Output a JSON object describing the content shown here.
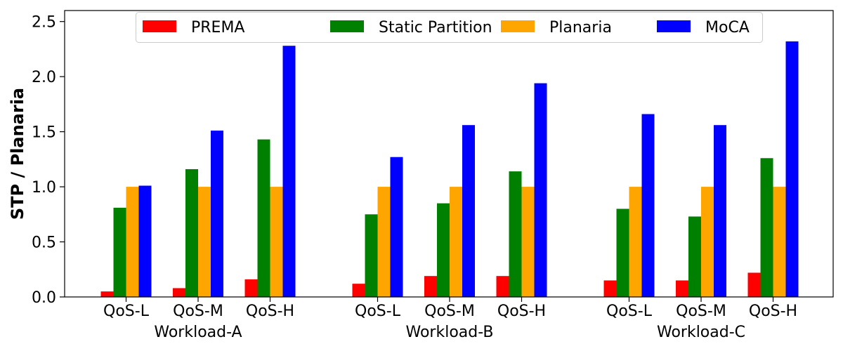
{
  "chart_data": {
    "type": "bar",
    "ylabel": "STP / Planaria",
    "xlabel": "",
    "ylim": [
      0,
      2.6
    ],
    "yticks": [
      "0.0",
      "0.5",
      "1.0",
      "1.5",
      "2.0",
      "2.5"
    ],
    "grid": false,
    "legend_position": "top-center",
    "groups": [
      {
        "label": "Workload-A",
        "categories": [
          "QoS-L",
          "QoS-M",
          "QoS-H"
        ]
      },
      {
        "label": "Workload-B",
        "categories": [
          "QoS-L",
          "QoS-M",
          "QoS-H"
        ]
      },
      {
        "label": "Workload-C",
        "categories": [
          "QoS-L",
          "QoS-M",
          "QoS-H"
        ]
      }
    ],
    "series": [
      {
        "name": "PREMA",
        "color": "#ff0000",
        "values": [
          0.05,
          0.08,
          0.16,
          0.12,
          0.19,
          0.19,
          0.15,
          0.15,
          0.22
        ]
      },
      {
        "name": "Static Partition",
        "color": "#008000",
        "values": [
          0.81,
          1.16,
          1.43,
          0.75,
          0.85,
          1.14,
          0.8,
          0.73,
          1.26
        ]
      },
      {
        "name": "Planaria",
        "color": "#ffa500",
        "values": [
          1.0,
          1.0,
          1.0,
          1.0,
          1.0,
          1.0,
          1.0,
          1.0,
          1.0
        ]
      },
      {
        "name": "MoCA",
        "color": "#0000ff",
        "values": [
          1.01,
          1.51,
          2.28,
          1.27,
          1.56,
          1.94,
          1.66,
          1.56,
          2.32
        ]
      }
    ]
  }
}
